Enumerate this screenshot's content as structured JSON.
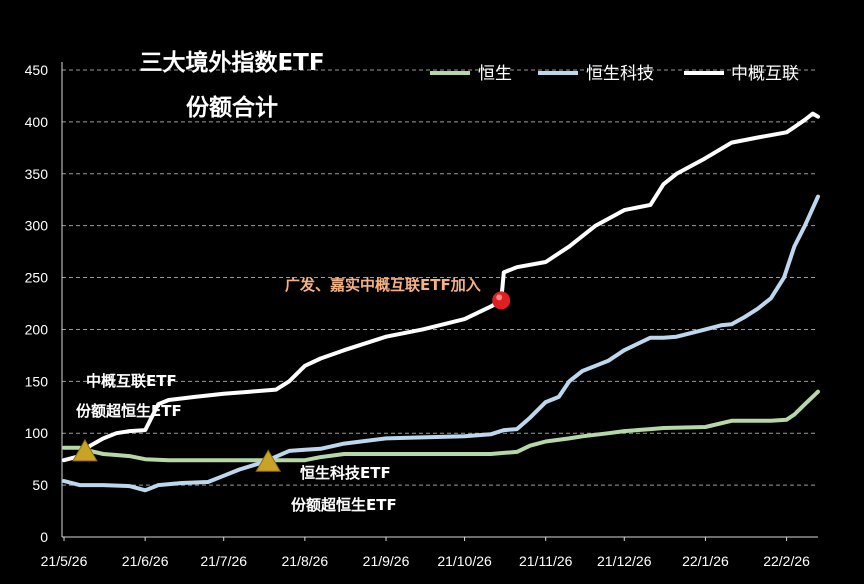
{
  "chart_data": {
    "type": "line",
    "title": [
      "三大境外指数ETF",
      "份额合计"
    ],
    "xlabel": "",
    "ylabel": "",
    "ylim": [
      0,
      450
    ],
    "yticks": [
      "0",
      "50",
      "100",
      "150",
      "200",
      "250",
      "300",
      "350",
      "400",
      "450"
    ],
    "xticks": [
      "21/5/26",
      "21/6/26",
      "21/7/26",
      "21/8/26",
      "21/9/26",
      "21/10/26",
      "21/11/26",
      "21/12/26",
      "22/1/26",
      "22/2/26"
    ],
    "x_range": [
      "2021-05-26",
      "2022-03-10"
    ],
    "grid": "horizontal-dashed",
    "legend_position": "top-right",
    "series": [
      {
        "name": "恒生",
        "color": "#b6d7a8",
        "x": [
          "2021-05-26",
          "2021-06-01",
          "2021-06-05",
          "2021-06-10",
          "2021-06-15",
          "2021-06-20",
          "2021-06-26",
          "2021-07-05",
          "2021-07-15",
          "2021-07-26",
          "2021-08-05",
          "2021-08-15",
          "2021-08-26",
          "2021-09-01",
          "2021-09-10",
          "2021-09-26",
          "2021-10-10",
          "2021-10-26",
          "2021-11-05",
          "2021-11-10",
          "2021-11-15",
          "2021-11-20",
          "2021-11-26",
          "2021-12-05",
          "2021-12-10",
          "2021-12-20",
          "2021-12-26",
          "2022-01-05",
          "2022-01-10",
          "2022-01-26",
          "2022-02-05",
          "2022-02-10",
          "2022-02-15",
          "2022-02-20",
          "2022-02-26",
          "2022-03-01",
          "2022-03-05",
          "2022-03-10"
        ],
        "values": [
          86,
          86,
          83,
          80,
          79,
          78,
          75,
          74,
          74,
          74,
          74,
          74,
          74,
          77,
          80,
          80,
          80,
          80,
          80,
          81,
          82,
          88,
          92,
          95,
          97,
          100,
          102,
          104,
          105,
          106,
          112,
          112,
          112,
          112,
          113,
          118,
          128,
          140
        ]
      },
      {
        "name": "恒生科技",
        "color": "#bdd7ee",
        "x": [
          "2021-05-26",
          "2021-06-01",
          "2021-06-10",
          "2021-06-20",
          "2021-06-26",
          "2021-07-01",
          "2021-07-10",
          "2021-07-20",
          "2021-07-25",
          "2021-08-01",
          "2021-08-10",
          "2021-08-20",
          "2021-08-26",
          "2021-09-01",
          "2021-09-10",
          "2021-09-26",
          "2021-10-10",
          "2021-10-26",
          "2021-11-05",
          "2021-11-10",
          "2021-11-15",
          "2021-11-20",
          "2021-11-26",
          "2021-12-01",
          "2021-12-05",
          "2021-12-10",
          "2021-12-15",
          "2021-12-20",
          "2021-12-26",
          "2022-01-05",
          "2022-01-10",
          "2022-01-15",
          "2022-01-26",
          "2022-02-01",
          "2022-02-05",
          "2022-02-10",
          "2022-02-15",
          "2022-02-20",
          "2022-02-25",
          "2022-03-01",
          "2022-03-05",
          "2022-03-10"
        ],
        "values": [
          54,
          50,
          50,
          49,
          45,
          50,
          52,
          53,
          58,
          65,
          72,
          83,
          84,
          85,
          90,
          95,
          96,
          97,
          99,
          103,
          104,
          115,
          130,
          135,
          150,
          160,
          165,
          170,
          180,
          192,
          192,
          193,
          200,
          204,
          205,
          212,
          220,
          230,
          250,
          280,
          300,
          328
        ]
      },
      {
        "name": "中概互联",
        "color": "#ffffff",
        "x": [
          "2021-05-26",
          "2021-06-01",
          "2021-06-05",
          "2021-06-10",
          "2021-06-15",
          "2021-06-20",
          "2021-06-26",
          "2021-07-01",
          "2021-07-05",
          "2021-07-15",
          "2021-07-26",
          "2021-08-05",
          "2021-08-15",
          "2021-08-20",
          "2021-08-26",
          "2021-09-01",
          "2021-09-10",
          "2021-09-26",
          "2021-10-10",
          "2021-10-26",
          "2021-11-05",
          "2021-11-09",
          "2021-11-10",
          "2021-11-15",
          "2021-11-26",
          "2021-12-05",
          "2021-12-15",
          "2021-12-26",
          "2022-01-05",
          "2022-01-10",
          "2022-01-15",
          "2022-01-26",
          "2022-02-05",
          "2022-02-15",
          "2022-02-26",
          "2022-03-01",
          "2022-03-05",
          "2022-03-08",
          "2022-03-10"
        ],
        "values": [
          74,
          78,
          88,
          95,
          100,
          102,
          103,
          128,
          132,
          135,
          138,
          140,
          142,
          150,
          165,
          172,
          180,
          193,
          200,
          210,
          222,
          228,
          255,
          260,
          265,
          280,
          300,
          315,
          320,
          340,
          350,
          365,
          380,
          385,
          390,
          395,
          402,
          408,
          405
        ]
      }
    ],
    "annotations": {
      "addition_label": "广发、嘉实中概互联ETF加入",
      "cross1_line1": "中概互联ETF",
      "cross1_line2": "份额超恒生ETF",
      "cross2_line1": "恒生科技ETF",
      "cross2_line2": "份额超恒生ETF"
    },
    "markers": [
      {
        "type": "triangle",
        "color": "#c9a227",
        "x": "2021-06-03",
        "y": 82
      },
      {
        "type": "triangle",
        "color": "#c9a227",
        "x": "2021-08-12",
        "y": 72
      },
      {
        "type": "circle",
        "color": "#e02020",
        "x": "2021-11-09",
        "y": 228
      }
    ]
  }
}
